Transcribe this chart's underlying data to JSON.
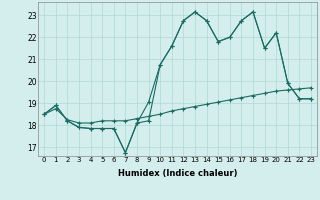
{
  "xlabel": "Humidex (Indice chaleur)",
  "bg_color": "#d4eeed",
  "grid_color": "#b0d8d4",
  "line_color": "#1a6b62",
  "xlim": [
    -0.5,
    23.5
  ],
  "ylim": [
    16.6,
    23.6
  ],
  "yticks": [
    17,
    18,
    19,
    20,
    21,
    22,
    23
  ],
  "xticks": [
    0,
    1,
    2,
    3,
    4,
    5,
    6,
    7,
    8,
    9,
    10,
    11,
    12,
    13,
    14,
    15,
    16,
    17,
    18,
    19,
    20,
    21,
    22,
    23
  ],
  "line1_x": [
    0,
    1,
    2,
    3,
    4,
    5,
    6,
    7,
    8,
    9,
    10,
    11,
    12,
    13,
    14,
    15,
    16,
    17,
    18,
    19,
    20,
    21,
    22,
    23
  ],
  "line1_y": [
    18.5,
    18.9,
    18.2,
    17.9,
    17.85,
    17.85,
    17.85,
    16.75,
    18.1,
    19.05,
    20.75,
    21.6,
    22.75,
    23.15,
    22.75,
    21.8,
    22.0,
    22.75,
    23.15,
    21.5,
    22.2,
    19.9,
    19.2,
    19.2
  ],
  "line2_x": [
    0,
    1,
    2,
    3,
    4,
    5,
    6,
    7,
    8,
    9,
    10,
    11,
    12,
    13,
    14,
    15,
    16,
    17,
    18,
    19,
    20,
    21,
    22,
    23
  ],
  "line2_y": [
    18.5,
    18.9,
    18.2,
    17.9,
    17.85,
    17.85,
    17.85,
    16.75,
    18.1,
    18.2,
    20.75,
    21.6,
    22.75,
    23.15,
    22.75,
    21.8,
    22.0,
    22.75,
    23.15,
    21.5,
    22.2,
    19.9,
    19.2,
    19.2
  ],
  "line3_x": [
    0,
    1,
    2,
    3,
    4,
    5,
    6,
    7,
    8,
    9,
    10,
    11,
    12,
    13,
    14,
    15,
    16,
    17,
    18,
    19,
    20,
    21,
    22,
    23
  ],
  "line3_y": [
    18.5,
    18.75,
    18.25,
    18.1,
    18.1,
    18.2,
    18.2,
    18.2,
    18.3,
    18.4,
    18.5,
    18.65,
    18.75,
    18.85,
    18.95,
    19.05,
    19.15,
    19.25,
    19.35,
    19.45,
    19.55,
    19.6,
    19.65,
    19.7
  ]
}
